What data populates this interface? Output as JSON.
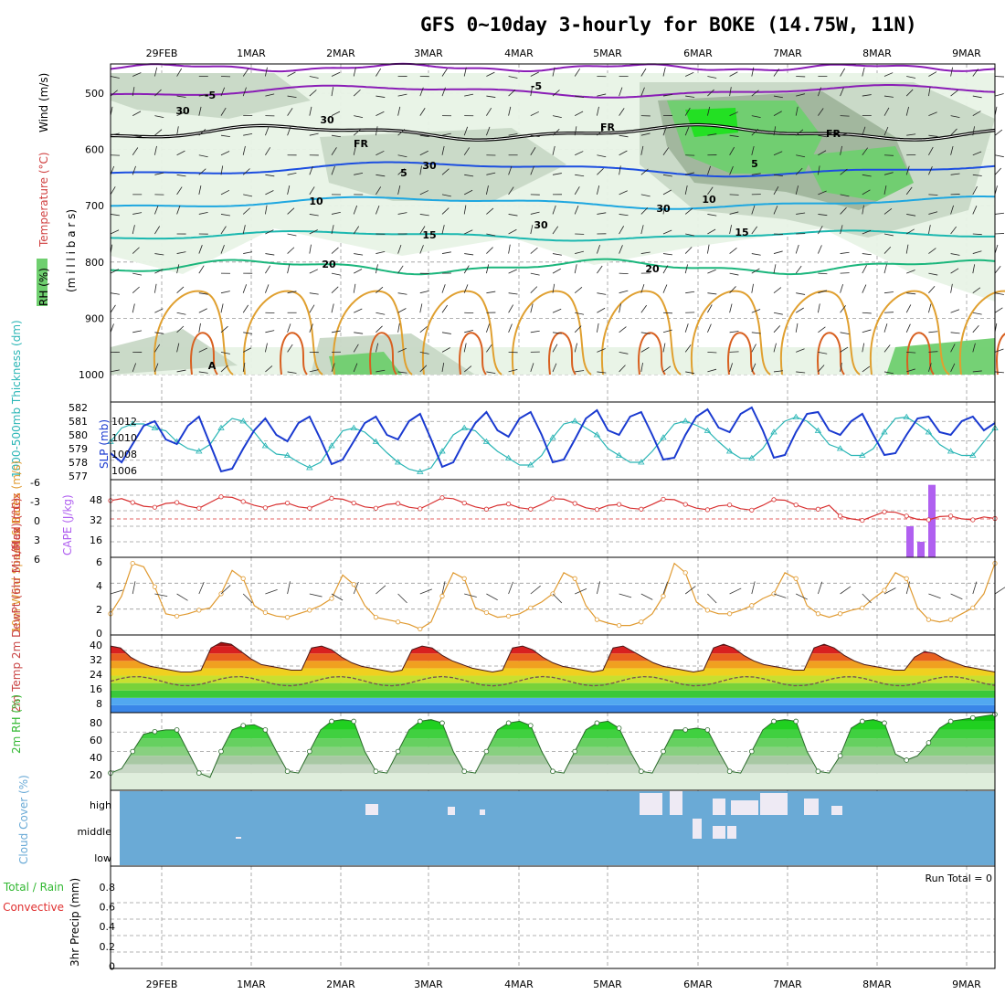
{
  "title": "GFS 0~10day 3-hourly for BOKE (14.75W, 11N)",
  "days": [
    "29FEB",
    "1MAR",
    "2MAR",
    "3MAR",
    "4MAR",
    "5MAR",
    "6MAR",
    "7MAR",
    "8MAR",
    "9MAR"
  ],
  "colors": {
    "grid": "#9a9a9a",
    "rh_light": "#e8f3e6",
    "rh_mid": "#c8d8c6",
    "rh_dark": "#9fb59c",
    "rh_green": "#6fcf6f",
    "rh_bright": "#1fe01f",
    "temp_neg": "#8a1db6",
    "temp_fr": "#000000",
    "temp_5": "#1c4ee0",
    "temp_10": "#1ea7e0",
    "temp_15": "#1cb8b0",
    "temp_20": "#1bb67c",
    "temp_hot": "#e0a030",
    "temp_hotter": "#d86020",
    "slp": "#1a3ad0",
    "thickness": "#29b5b5",
    "lifted": "#d83030",
    "cape": "#b060f0",
    "wind10m": "#e09a30",
    "rh2m": "#32b832",
    "cloud": "#6aaad6",
    "cloud_gap": "#eeeaf4"
  },
  "panel1": {
    "ylabel_parts": [
      "RH (%)",
      "Temperature (°C)",
      "Wind (m/s)"
    ],
    "ylabel_sub": "(m i l l i b a r s)",
    "yticks": [
      "500",
      "600",
      "700",
      "800",
      "900",
      "1000"
    ],
    "contour_labels": [
      "-5",
      "-5",
      "FR",
      "FR",
      "FR",
      "5",
      "5",
      "10",
      "10",
      "15",
      "15",
      "20",
      "20",
      "30",
      "30",
      "30",
      "30",
      "30",
      "A"
    ]
  },
  "panel2": {
    "ylabel_left": "1000-500mb Thickness (dm)",
    "ylabel_right": "SLP (mb)",
    "left_ticks": [
      "582",
      "581",
      "580",
      "579",
      "578",
      "577"
    ],
    "right_ticks": [
      "1012",
      "1010",
      "1008",
      "1006"
    ]
  },
  "panel3": {
    "ylabel_left": "Lifted Index",
    "ylabel_right": "CAPE (J/kg)",
    "left_ticks": [
      "-6",
      "-3",
      "0",
      "3",
      "6"
    ],
    "right_ticks": [
      "48",
      "32",
      "16"
    ]
  },
  "panel4": {
    "ylabel": "10m Wind Speed & Barbs (m/s)",
    "yticks": [
      "6",
      "4",
      "2",
      "0"
    ]
  },
  "panel5": {
    "ylabel": "2m Temp 2m DewPt (6hr Min/Max) (°C)",
    "yticks": [
      "40",
      "32",
      "24",
      "16",
      "8"
    ]
  },
  "panel6": {
    "ylabel": "2m RH (%)",
    "yticks": [
      "80",
      "60",
      "40",
      "20"
    ]
  },
  "panel7": {
    "ylabel": "Cloud Cover (%)",
    "levels": [
      "high",
      "middle",
      "low"
    ]
  },
  "panel8": {
    "ylabel_green": "Total / Rain",
    "ylabel_red": "Convective",
    "ylabel": "3hr Precip (mm)",
    "yticks": [
      "0.8",
      "0.6",
      "0.4",
      "0.2",
      "0"
    ],
    "run_total": "Run Total = 0"
  },
  "chart_data": [
    {
      "type": "line",
      "title": "SLP (mb)",
      "x_step_hours": 3,
      "ylim": [
        1006,
        1013.5
      ],
      "series": [
        {
          "name": "SLP (mb)",
          "values": [
            1008.5,
            1007.5,
            1009.5,
            1011.5,
            1012.0,
            1010.0,
            1009.5,
            1011.5,
            1012.5,
            1009.5,
            1006.5,
            1006.8,
            1009.0,
            1011.0,
            1012.3,
            1010.5,
            1009.8,
            1011.8,
            1012.5,
            1010.0,
            1007.3,
            1007.8,
            1009.8,
            1011.8,
            1012.5,
            1010.5,
            1010.0,
            1012.0,
            1012.8,
            1010.0,
            1007.0,
            1007.5,
            1009.8,
            1011.8,
            1013.0,
            1011.0,
            1010.3,
            1012.3,
            1013.0,
            1010.5,
            1007.5,
            1007.8,
            1010.0,
            1012.3,
            1013.2,
            1011.0,
            1010.5,
            1012.5,
            1013.0,
            1010.5,
            1007.8,
            1008.0,
            1010.5,
            1012.5,
            1013.3,
            1011.3,
            1010.8,
            1012.8,
            1013.5,
            1011.0,
            1008.0,
            1008.3,
            1010.8,
            1012.8,
            1013.0,
            1011.0,
            1010.5,
            1012.0,
            1012.8,
            1010.5,
            1008.3,
            1008.5,
            1010.5,
            1012.3,
            1012.5,
            1010.8,
            1010.5,
            1012.0,
            1012.5,
            1011.0,
            1011.8
          ]
        }
      ]
    },
    {
      "type": "line",
      "title": "1000-500mb Thickness (dm)",
      "ylim": [
        577,
        582
      ],
      "series": [
        {
          "name": "1000-500mb Thickness (dm)",
          "values": [
            579.5,
            580.5,
            580.8,
            580.8,
            580.5,
            580.3,
            579.5,
            579.0,
            578.8,
            579.3,
            580.5,
            581.2,
            581.0,
            580.2,
            579.2,
            578.6,
            578.5,
            578.0,
            577.6,
            578.0,
            579.2,
            580.3,
            580.5,
            580.2,
            579.5,
            578.7,
            578.0,
            577.5,
            577.3,
            577.6,
            578.8,
            580.0,
            580.5,
            580.3,
            579.5,
            578.8,
            578.3,
            577.8,
            577.8,
            578.5,
            579.8,
            580.8,
            581.0,
            580.5,
            580.0,
            579.0,
            578.5,
            578.0,
            578.0,
            578.8,
            579.8,
            580.8,
            581.0,
            580.7,
            580.3,
            579.5,
            578.8,
            578.3,
            578.3,
            579.0,
            580.2,
            581.0,
            581.3,
            581.0,
            580.3,
            579.3,
            579.0,
            578.5,
            578.5,
            579.0,
            580.2,
            581.2,
            581.3,
            580.8,
            580.2,
            579.3,
            578.8,
            578.5,
            578.5,
            579.5,
            580.5
          ]
        }
      ]
    },
    {
      "type": "bar",
      "title": "CAPE (J/kg)",
      "categories": [
        "8MAR 09Z",
        "8MAR 12Z",
        "8MAR 15Z"
      ],
      "values": [
        24,
        12,
        56
      ]
    },
    {
      "type": "line",
      "title": "10m Wind Speed (m/s)",
      "ylim": [
        0,
        6
      ],
      "series": [
        {
          "name": "10m Wind Speed (m/s)",
          "values": [
            1.5,
            3.0,
            5.8,
            5.5,
            3.8,
            1.5,
            1.3,
            1.5,
            1.8,
            2.0,
            3.2,
            5.2,
            4.5,
            2.2,
            1.6,
            1.3,
            1.2,
            1.5,
            1.8,
            2.2,
            2.8,
            4.8,
            4.0,
            2.2,
            1.2,
            1.0,
            0.8,
            0.6,
            0.2,
            0.8,
            3.0,
            5.0,
            4.5,
            2.0,
            1.6,
            1.2,
            1.3,
            1.5,
            2.0,
            2.5,
            3.2,
            5.0,
            4.5,
            2.2,
            1.0,
            0.7,
            0.5,
            0.5,
            0.8,
            1.5,
            3.0,
            5.8,
            5.0,
            2.5,
            1.8,
            1.5,
            1.5,
            1.8,
            2.2,
            2.8,
            3.2,
            5.0,
            4.5,
            2.2,
            1.5,
            1.2,
            1.5,
            1.8,
            2.0,
            2.8,
            3.5,
            5.0,
            4.5,
            2.0,
            1.0,
            0.8,
            1.0,
            1.5,
            2.0,
            3.2,
            5.8
          ]
        }
      ]
    },
    {
      "type": "area",
      "title": "2m Temp (°C)",
      "ylim": [
        0,
        42
      ],
      "series": [
        {
          "name": "2m Temp (°C)",
          "values": [
            36,
            35,
            30,
            27,
            25,
            24,
            23,
            22,
            22,
            23,
            35,
            38,
            37,
            33,
            29,
            26,
            25,
            24,
            23,
            23,
            35,
            36,
            34,
            30,
            27,
            25,
            24,
            23,
            22,
            23,
            34,
            36,
            35,
            31,
            28,
            26,
            24,
            23,
            22,
            23,
            35,
            36,
            34,
            30,
            27,
            25,
            24,
            23,
            22,
            23,
            35,
            36,
            33,
            30,
            27,
            25,
            24,
            23,
            22,
            23,
            35,
            37,
            35,
            31,
            28,
            26,
            25,
            24,
            23,
            23,
            35,
            37,
            35,
            31,
            28,
            26,
            25,
            24,
            23,
            23,
            30,
            33,
            32,
            29,
            27,
            25,
            24,
            23,
            22
          ]
        }
      ]
    },
    {
      "type": "area",
      "title": "2m RH (%)",
      "ylim": [
        0,
        90
      ],
      "series": [
        {
          "name": "2m RH (%)",
          "values": [
            20,
            25,
            45,
            65,
            68,
            70,
            70,
            45,
            20,
            15,
            45,
            70,
            75,
            76,
            70,
            45,
            22,
            20,
            45,
            70,
            80,
            82,
            80,
            45,
            22,
            20,
            45,
            70,
            80,
            82,
            78,
            45,
            22,
            20,
            45,
            70,
            78,
            80,
            75,
            45,
            22,
            20,
            45,
            70,
            78,
            80,
            72,
            45,
            22,
            20,
            45,
            70,
            70,
            72,
            70,
            45,
            22,
            20,
            45,
            70,
            80,
            82,
            80,
            45,
            22,
            20,
            40,
            72,
            80,
            82,
            78,
            42,
            35,
            40,
            55,
            72,
            80,
            82,
            84,
            86,
            88
          ]
        }
      ]
    },
    {
      "type": "table",
      "title": "Cloud Cover (%)",
      "categories": [
        "high",
        "middle",
        "low"
      ]
    },
    {
      "type": "bar",
      "title": "3hr Precip (mm)",
      "ylim": [
        0,
        0.9
      ],
      "values": [],
      "annotations": [
        "Run Total = 0"
      ]
    }
  ]
}
